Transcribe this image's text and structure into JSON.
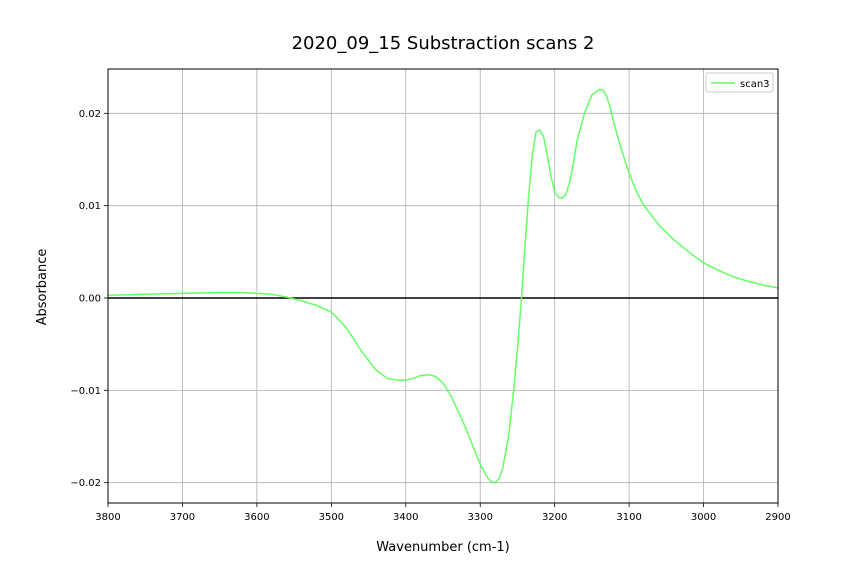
{
  "chart_data": {
    "type": "line",
    "title": "2020_09_15 Substraction scans 2",
    "xlabel": "Wavenumber (cm-1)",
    "ylabel": "Absorbance",
    "xlim": [
      3800,
      2900
    ],
    "x_reversed": true,
    "ylim": [
      -0.0222,
      0.0248
    ],
    "xticks": [
      3800,
      3700,
      3600,
      3500,
      3400,
      3300,
      3200,
      3100,
      3000,
      2900
    ],
    "xtick_labels": [
      "3800",
      "3700",
      "3600",
      "3500",
      "3400",
      "3300",
      "3200",
      "3100",
      "3000",
      "2900"
    ],
    "yticks": [
      -0.02,
      -0.01,
      0.0,
      0.01,
      0.02
    ],
    "ytick_labels": [
      "−0.02",
      "−0.01",
      "0.00",
      "0.01",
      "0.02"
    ],
    "grid": true,
    "zero_line": true,
    "legend_position": "top-right",
    "series": [
      {
        "name": "scan3",
        "color": "#66ff66",
        "x": [
          3800,
          3750,
          3700,
          3650,
          3620,
          3600,
          3580,
          3560,
          3540,
          3520,
          3500,
          3480,
          3460,
          3440,
          3425,
          3410,
          3400,
          3390,
          3380,
          3370,
          3360,
          3350,
          3340,
          3330,
          3320,
          3310,
          3300,
          3290,
          3285,
          3280,
          3275,
          3270,
          3262,
          3255,
          3250,
          3245,
          3240,
          3235,
          3230,
          3225,
          3220,
          3215,
          3210,
          3205,
          3200,
          3195,
          3190,
          3185,
          3180,
          3175,
          3170,
          3160,
          3150,
          3140,
          3135,
          3130,
          3125,
          3120,
          3110,
          3100,
          3090,
          3080,
          3060,
          3040,
          3020,
          3000,
          2980,
          2960,
          2940,
          2920,
          2900
        ],
        "y": [
          0.0003,
          0.0004,
          0.0005,
          0.0006,
          0.0006,
          0.0005,
          0.0004,
          0.0001,
          -0.0003,
          -0.0008,
          -0.0015,
          -0.0032,
          -0.0057,
          -0.0078,
          -0.0087,
          -0.0089,
          -0.0089,
          -0.0087,
          -0.0084,
          -0.0083,
          -0.0085,
          -0.0092,
          -0.0105,
          -0.0122,
          -0.014,
          -0.016,
          -0.018,
          -0.0195,
          -0.0199,
          -0.02,
          -0.0196,
          -0.0185,
          -0.015,
          -0.01,
          -0.0055,
          -0.0005,
          0.0055,
          0.011,
          0.0155,
          0.018,
          0.0182,
          0.0175,
          0.0155,
          0.0132,
          0.0115,
          0.0109,
          0.0108,
          0.0112,
          0.0125,
          0.0145,
          0.017,
          0.02,
          0.022,
          0.0226,
          0.0225,
          0.0218,
          0.0205,
          0.0188,
          0.016,
          0.0135,
          0.0115,
          0.01,
          0.0079,
          0.0063,
          0.005,
          0.0038,
          0.003,
          0.0023,
          0.0018,
          0.0014,
          0.0011
        ]
      }
    ]
  }
}
